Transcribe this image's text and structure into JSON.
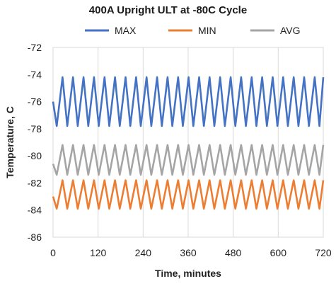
{
  "chart_data": {
    "type": "line",
    "title": "400A Upright  ULT at  -80C Cycle",
    "xlabel": "Time, minutes",
    "ylabel": "Temperature, C",
    "xlim": [
      0,
      720
    ],
    "ylim": [
      -86,
      -72
    ],
    "x_ticks": [
      0,
      120,
      240,
      360,
      480,
      600,
      720
    ],
    "y_ticks": [
      -72,
      -74,
      -76,
      -78,
      -80,
      -82,
      -84,
      -86
    ],
    "x_tick_labels": [
      "0",
      "120",
      "240",
      "360",
      "480",
      "600",
      "720"
    ],
    "y_tick_labels": [
      "-72",
      "-74",
      "-76",
      "-78",
      "-80",
      "-82",
      "-84",
      "-86"
    ],
    "grid": "vertical gridlines at each x tick",
    "legend_position": "top",
    "cycle_period_minutes": 28,
    "series": [
      {
        "name": "MAX",
        "color": "#4472C4",
        "peak": -74.2,
        "trough": -77.8,
        "start": -76.0
      },
      {
        "name": "MIN",
        "color": "#ED7D31",
        "peak": -81.8,
        "trough": -83.9,
        "start": -83.0
      },
      {
        "name": "AVG",
        "color": "#A5A5A5",
        "peak": -79.2,
        "trough": -81.4,
        "start": -80.6
      }
    ]
  }
}
